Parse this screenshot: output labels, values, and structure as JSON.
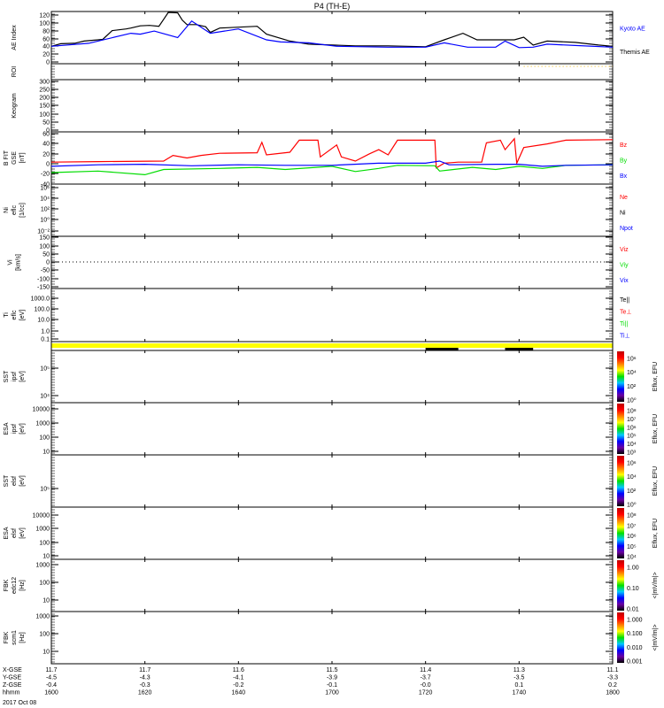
{
  "title": "P4 (TH-E)",
  "date": "2017 Oct 08",
  "xaxis": {
    "row_labels": [
      "X-GSE",
      "Y-GSE",
      "Z-GSE",
      "hhmm"
    ],
    "columns": [
      [
        "11.7",
        "-4.5",
        "-0.4",
        "1600"
      ],
      [
        "11.7",
        "-4.3",
        "-0.3",
        "1620"
      ],
      [
        "11.6",
        "-4.1",
        "-0.2",
        "1640"
      ],
      [
        "11.5",
        "-3.9",
        "-0.1",
        "1700"
      ],
      [
        "11.4",
        "-3.7",
        "-0.0",
        "1720"
      ],
      [
        "11.3",
        "-3.5",
        "0.1",
        "1740"
      ],
      [
        "11.1",
        "-3.3",
        "0.2",
        "1800"
      ]
    ]
  },
  "panels": [
    {
      "id": "ae",
      "ylabel": [
        "AE Index"
      ],
      "ticks": [
        "120",
        "100",
        "80",
        "60",
        "40",
        "20",
        "0"
      ],
      "legend": [
        {
          "text": "Kyoto AE",
          "color": "#0000ff"
        },
        {
          "text": "Themis AE",
          "color": "#000000"
        }
      ]
    },
    {
      "id": "roi",
      "ylabel": [
        "ROI"
      ],
      "ticks": [],
      "legend": []
    },
    {
      "id": "keogram",
      "ylabel": [
        "Keogram"
      ],
      "ticks": [
        "300",
        "250",
        "200",
        "150",
        "100",
        "50",
        "0"
      ],
      "legend": []
    },
    {
      "id": "bfit",
      "ylabel": [
        "B FIT",
        "GSE",
        "[nT]"
      ],
      "ticks": [
        "60",
        "40",
        "20",
        "0",
        "-20",
        "-40"
      ],
      "legend": [
        {
          "text": "Bz",
          "color": "#ff0000"
        },
        {
          "text": "By",
          "color": "#00dd00"
        },
        {
          "text": "Bx",
          "color": "#0000ff"
        }
      ]
    },
    {
      "id": "ni",
      "ylabel": [
        "Ni",
        "eflc",
        "[1/cc]"
      ],
      "ticks": [
        "10⁶",
        "10⁴",
        "10²",
        "10⁰",
        "10⁻²"
      ],
      "legend": [
        {
          "text": "Ne",
          "color": "#ff0000"
        },
        {
          "text": "Ni",
          "color": "#000000"
        },
        {
          "text": "Npot",
          "color": "#0000ff"
        }
      ]
    },
    {
      "id": "vi",
      "ylabel": [
        "Vi",
        "[km/s]"
      ],
      "ticks": [
        "150",
        "100",
        "50",
        "0",
        "-50",
        "-100",
        "-150"
      ],
      "legend": [
        {
          "text": "Viz",
          "color": "#ff0000"
        },
        {
          "text": "Viy",
          "color": "#00dd00"
        },
        {
          "text": "Vix",
          "color": "#0000ff"
        }
      ]
    },
    {
      "id": "ti",
      "ylabel": [
        "Ti",
        "eflc",
        "[eV]"
      ],
      "ticks": [
        "1000.0",
        "100.0",
        "10.0",
        "1.0",
        "0.1"
      ],
      "legend": [
        {
          "text": "Te||",
          "color": "#000000"
        },
        {
          "text": "Te⊥",
          "color": "#ff0000"
        },
        {
          "text": "Ti||",
          "color": "#00dd00"
        },
        {
          "text": "Ti⊥",
          "color": "#0000ff"
        }
      ]
    },
    {
      "id": "sst_i",
      "ylabel": [
        "SST",
        "ipsf",
        "[eV]"
      ],
      "ticks": [
        "10⁵",
        "10⁴"
      ],
      "cbar": {
        "ticks": [
          "10⁶",
          "10⁴",
          "10²",
          "10⁰"
        ],
        "label": "Eflux, EFU"
      }
    },
    {
      "id": "esa_i",
      "ylabel": [
        "ESA",
        "ipsf",
        "[eV]"
      ],
      "ticks": [
        "10000",
        "1000",
        "100",
        "10"
      ],
      "cbar": {
        "ticks": [
          "10⁸",
          "10⁷",
          "10⁶",
          "10⁵",
          "10⁴",
          "10³"
        ],
        "label": "Eflux, EFU"
      }
    },
    {
      "id": "sst_e",
      "ylabel": [
        "SST",
        "elsf",
        "[eV]"
      ],
      "ticks": [
        "10⁵"
      ],
      "cbar": {
        "ticks": [
          "10⁶",
          "10⁴",
          "10²",
          "10⁰"
        ],
        "label": "Eflux, EFU"
      }
    },
    {
      "id": "esa_e",
      "ylabel": [
        "ESA",
        "elsf",
        "[eV]"
      ],
      "ticks": [
        "10000",
        "1000",
        "100",
        "10"
      ],
      "cbar": {
        "ticks": [
          "10⁸",
          "10⁷",
          "10⁶",
          "10⁵",
          "10⁴"
        ],
        "label": "Eflux, EFU"
      }
    },
    {
      "id": "fbk1",
      "ylabel": [
        "FBK",
        "edc12",
        "[Hz]"
      ],
      "ticks": [
        "1000",
        "100",
        "10"
      ],
      "cbar": {
        "ticks": [
          "1.00",
          "0.10",
          "0.01"
        ],
        "label": "<|mV/m|>"
      }
    },
    {
      "id": "fbk2",
      "ylabel": [
        "FBK",
        "scm1",
        "[Hz]"
      ],
      "ticks": [
        "1000",
        "100",
        "10"
      ],
      "cbar": {
        "ticks": [
          "1.000",
          "0.100",
          "0.010",
          "0.001"
        ],
        "label": "<|mV/m|>"
      }
    }
  ],
  "chart_data": {
    "type": "line",
    "x_unit": "minutes after 1600 UT",
    "xlim": [
      0,
      120
    ],
    "ae": {
      "ylim": [
        0,
        120
      ],
      "series": [
        {
          "name": "Themis AE",
          "color": "#000000",
          "points": [
            [
              0,
              40
            ],
            [
              2,
              46
            ],
            [
              5,
              47
            ],
            [
              7,
              52
            ],
            [
              10,
              55
            ],
            [
              11,
              56
            ],
            [
              13,
              76
            ],
            [
              16,
              80
            ],
            [
              17,
              82
            ],
            [
              19,
              87
            ],
            [
              21,
              88
            ],
            [
              23,
              86
            ],
            [
              24,
              102
            ],
            [
              25,
              118
            ],
            [
              27,
              117
            ],
            [
              28,
              100
            ],
            [
              29,
              90
            ],
            [
              31,
              90
            ],
            [
              33,
              85
            ],
            [
              34,
              72
            ],
            [
              36,
              82
            ],
            [
              44,
              86
            ],
            [
              46,
              68
            ],
            [
              51,
              52
            ],
            [
              55,
              45
            ],
            [
              65,
              41
            ],
            [
              72,
              41
            ],
            [
              80,
              39
            ],
            [
              84,
              55
            ],
            [
              88,
              70
            ],
            [
              91,
              55
            ],
            [
              99,
              55
            ],
            [
              101,
              61
            ],
            [
              103,
              43
            ],
            [
              106,
              52
            ],
            [
              112,
              49
            ],
            [
              117,
              43
            ],
            [
              120,
              40
            ]
          ]
        },
        {
          "name": "Kyoto AE",
          "color": "#0000ff",
          "points": [
            [
              0,
              40
            ],
            [
              8,
              47
            ],
            [
              17,
              70
            ],
            [
              19,
              68
            ],
            [
              22,
              75
            ],
            [
              27,
              60
            ],
            [
              30,
              98
            ],
            [
              34,
              70
            ],
            [
              40,
              80
            ],
            [
              46,
              55
            ],
            [
              49,
              50
            ],
            [
              55,
              48
            ],
            [
              61,
              40
            ],
            [
              72,
              38
            ],
            [
              80,
              38
            ],
            [
              84,
              48
            ],
            [
              89,
              38
            ],
            [
              95,
              38
            ],
            [
              97,
              52
            ],
            [
              100,
              37
            ],
            [
              103,
              38
            ],
            [
              106,
              45
            ],
            [
              112,
              42
            ],
            [
              120,
              38
            ]
          ]
        }
      ]
    },
    "bfit": {
      "ylim": [
        -40,
        60
      ],
      "series": [
        {
          "name": "Bz",
          "color": "#ff0000",
          "points": [
            [
              0,
              2
            ],
            [
              10,
              3
            ],
            [
              24,
              4
            ],
            [
              26,
              15
            ],
            [
              29,
              10
            ],
            [
              32,
              15
            ],
            [
              36,
              19
            ],
            [
              44,
              20
            ],
            [
              45,
              40
            ],
            [
              46,
              16
            ],
            [
              51,
              21
            ],
            [
              53,
              44
            ],
            [
              57,
              44
            ],
            [
              57.5,
              12
            ],
            [
              61,
              35
            ],
            [
              62,
              12
            ],
            [
              65,
              4
            ],
            [
              68,
              18
            ],
            [
              70,
              26
            ],
            [
              72,
              16
            ],
            [
              74,
              44
            ],
            [
              82,
              44
            ],
            [
              82.3,
              -9
            ],
            [
              84,
              0
            ],
            [
              87,
              2
            ],
            [
              92,
              2
            ],
            [
              93,
              39
            ],
            [
              96,
              44
            ],
            [
              97,
              26
            ],
            [
              99,
              47
            ],
            [
              99.5,
              0
            ],
            [
              101,
              30
            ],
            [
              106,
              37
            ],
            [
              110,
              44
            ],
            [
              120,
              45
            ]
          ]
        },
        {
          "name": "By",
          "color": "#00dd00",
          "points": [
            [
              0,
              -18
            ],
            [
              10,
              -15
            ],
            [
              20,
              -22
            ],
            [
              24,
              -12
            ],
            [
              36,
              -10
            ],
            [
              44,
              -8
            ],
            [
              50,
              -12
            ],
            [
              60,
              -6
            ],
            [
              65,
              -16
            ],
            [
              70,
              -10
            ],
            [
              74,
              -4
            ],
            [
              82,
              -5
            ],
            [
              83,
              -15
            ],
            [
              90,
              -8
            ],
            [
              95,
              -12
            ],
            [
              100,
              -6
            ],
            [
              105,
              -10
            ],
            [
              110,
              -4
            ],
            [
              120,
              -3
            ]
          ]
        },
        {
          "name": "Bx",
          "color": "#0000ff",
          "points": [
            [
              0,
              -6
            ],
            [
              10,
              -3
            ],
            [
              20,
              -2
            ],
            [
              30,
              -5
            ],
            [
              40,
              -3
            ],
            [
              50,
              -4
            ],
            [
              60,
              -4
            ],
            [
              70,
              0
            ],
            [
              80,
              0
            ],
            [
              83,
              4
            ],
            [
              85,
              -3
            ],
            [
              95,
              -2
            ],
            [
              100,
              -2
            ],
            [
              105,
              -6
            ],
            [
              110,
              -4
            ],
            [
              120,
              -3
            ]
          ]
        }
      ]
    },
    "vi": {
      "ylim": [
        -150,
        150
      ],
      "zero_line": true
    },
    "mode_bar": {
      "color": "#ffff00",
      "black_segments": [
        [
          80,
          87
        ],
        [
          97,
          103
        ]
      ]
    },
    "roi": {
      "dotted_segment": [
        101,
        120
      ],
      "color": "#f0b000"
    }
  }
}
